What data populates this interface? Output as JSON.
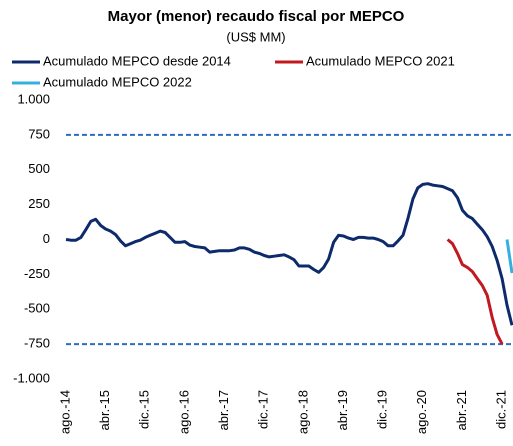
{
  "chart_data": {
    "type": "line",
    "title": "Mayor (menor) recaudo fiscal por MEPCO",
    "subtitle": "(US$ MM)",
    "categories": [
      "ago.-14",
      null,
      null,
      null,
      null,
      null,
      null,
      null,
      "abr.-15",
      null,
      null,
      null,
      null,
      null,
      null,
      null,
      "dic.-15",
      null,
      null,
      null,
      null,
      null,
      null,
      null,
      "ago.-16",
      null,
      null,
      null,
      null,
      null,
      null,
      null,
      "abr.-17",
      null,
      null,
      null,
      null,
      null,
      null,
      null,
      "dic.-17",
      null,
      null,
      null,
      null,
      null,
      null,
      null,
      "ago.-18",
      null,
      null,
      null,
      null,
      null,
      null,
      null,
      "abr.-19",
      null,
      null,
      null,
      null,
      null,
      null,
      null,
      "dic.-19",
      null,
      null,
      null,
      null,
      null,
      null,
      null,
      "ago.-20",
      null,
      null,
      null,
      null,
      null,
      null,
      null,
      "abr.-21",
      null,
      null,
      null,
      null,
      null,
      null,
      null,
      "dic.-21",
      null,
      null
    ],
    "series": [
      {
        "name": "Acumulado MEPCO desde 2014",
        "color": "#0d2a6b",
        "values": [
          0,
          -5,
          -5,
          15,
          70,
          130,
          145,
          100,
          75,
          60,
          35,
          -10,
          -45,
          -30,
          -15,
          -5,
          15,
          30,
          45,
          60,
          50,
          15,
          -20,
          -20,
          -15,
          -40,
          -50,
          -55,
          -60,
          -90,
          -85,
          -80,
          -80,
          -80,
          -75,
          -60,
          -60,
          -70,
          -90,
          -100,
          -115,
          -125,
          -120,
          -115,
          -110,
          -125,
          -145,
          -190,
          -190,
          -190,
          -215,
          -235,
          -200,
          -140,
          -20,
          30,
          25,
          10,
          0,
          15,
          15,
          10,
          10,
          0,
          -15,
          -45,
          -45,
          -10,
          30,
          150,
          290,
          370,
          395,
          400,
          390,
          385,
          380,
          365,
          350,
          300,
          210,
          170,
          150,
          110,
          70,
          20,
          -50,
          -150,
          -280,
          -470,
          -615
        ]
      },
      {
        "name": "Acumulado MEPCO 2021",
        "color": "#c0191f",
        "values": [
          null,
          null,
          null,
          null,
          null,
          null,
          null,
          null,
          null,
          null,
          null,
          null,
          null,
          null,
          null,
          null,
          null,
          null,
          null,
          null,
          null,
          null,
          null,
          null,
          null,
          null,
          null,
          null,
          null,
          null,
          null,
          null,
          null,
          null,
          null,
          null,
          null,
          null,
          null,
          null,
          null,
          null,
          null,
          null,
          null,
          null,
          null,
          null,
          null,
          null,
          null,
          null,
          null,
          null,
          null,
          null,
          null,
          null,
          null,
          null,
          null,
          null,
          null,
          null,
          null,
          null,
          null,
          null,
          null,
          null,
          null,
          null,
          null,
          null,
          null,
          null,
          null,
          0,
          -30,
          -100,
          -180,
          -200,
          -230,
          -280,
          -330,
          -400,
          -560,
          -680,
          -750,
          null,
          null
        ]
      },
      {
        "name": "Acumulado MEPCO 2022",
        "color": "#33b0e0",
        "values": [
          null,
          null,
          null,
          null,
          null,
          null,
          null,
          null,
          null,
          null,
          null,
          null,
          null,
          null,
          null,
          null,
          null,
          null,
          null,
          null,
          null,
          null,
          null,
          null,
          null,
          null,
          null,
          null,
          null,
          null,
          null,
          null,
          null,
          null,
          null,
          null,
          null,
          null,
          null,
          null,
          null,
          null,
          null,
          null,
          null,
          null,
          null,
          null,
          null,
          null,
          null,
          null,
          null,
          null,
          null,
          null,
          null,
          null,
          null,
          null,
          null,
          null,
          null,
          null,
          null,
          null,
          null,
          null,
          null,
          null,
          null,
          null,
          null,
          null,
          null,
          null,
          null,
          null,
          null,
          null,
          null,
          null,
          null,
          null,
          null,
          null,
          null,
          null,
          null,
          0,
          -240
        ]
      }
    ],
    "hlines": [
      750,
      -750
    ],
    "hline_color": "#2f6db5",
    "ylim": [
      -1000,
      1000
    ],
    "yticks": [
      {
        "value": 1000,
        "label": "1.000"
      },
      750,
      500,
      250,
      0,
      -250,
      -500,
      -750,
      {
        "value": -1000,
        "label": "-1.000"
      }
    ]
  }
}
